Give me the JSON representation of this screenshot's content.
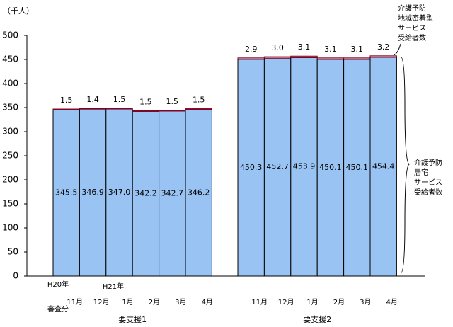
{
  "chart_data": {
    "type": "stacked_bar",
    "y_label": "（千人）",
    "ylim": [
      0,
      500
    ],
    "yticks": [
      0,
      50,
      100,
      150,
      200,
      250,
      300,
      350,
      400,
      450,
      500
    ],
    "annotations": [
      "H20年",
      "審査分",
      "H21年"
    ],
    "series": [
      {
        "name": [
          "介護予防",
          "居宅",
          "サービス",
          "受給者数"
        ],
        "color": "#99c3f2",
        "stroke": "#000000"
      },
      {
        "name": [
          "介護予防",
          "地域密着型",
          "サービス",
          "受給者数"
        ],
        "color": "#e8a0b0",
        "stroke": "#800020"
      }
    ],
    "groups": [
      {
        "name": "要支援1",
        "categories": [
          "11月",
          "12月",
          "1月",
          "2月",
          "3月",
          "4月"
        ],
        "values": [
          [
            345.5,
            346.9,
            347.0,
            342.2,
            342.7,
            346.2
          ],
          [
            1.5,
            1.4,
            1.5,
            1.5,
            1.5,
            1.5
          ]
        ],
        "value_labels": [
          [
            "345.5",
            "346.9",
            "347.0",
            "342.2",
            "342.7",
            "346.2"
          ],
          [
            "1.5",
            "1.4",
            "1.5",
            "1.5",
            "1.5",
            "1.5"
          ]
        ]
      },
      {
        "name": "要支援2",
        "categories": [
          "11月",
          "12月",
          "1月",
          "2月",
          "3月",
          "4月"
        ],
        "values": [
          [
            450.3,
            452.7,
            453.9,
            450.1,
            450.1,
            454.4
          ],
          [
            2.9,
            3.0,
            3.1,
            3.1,
            3.1,
            3.2
          ]
        ],
        "value_labels": [
          [
            "450.3",
            "452.7",
            "453.9",
            "450.1",
            "450.1",
            "454.4"
          ],
          [
            "2.9",
            "3.0",
            "3.1",
            "3.1",
            "3.1",
            "3.2"
          ]
        ]
      }
    ]
  }
}
